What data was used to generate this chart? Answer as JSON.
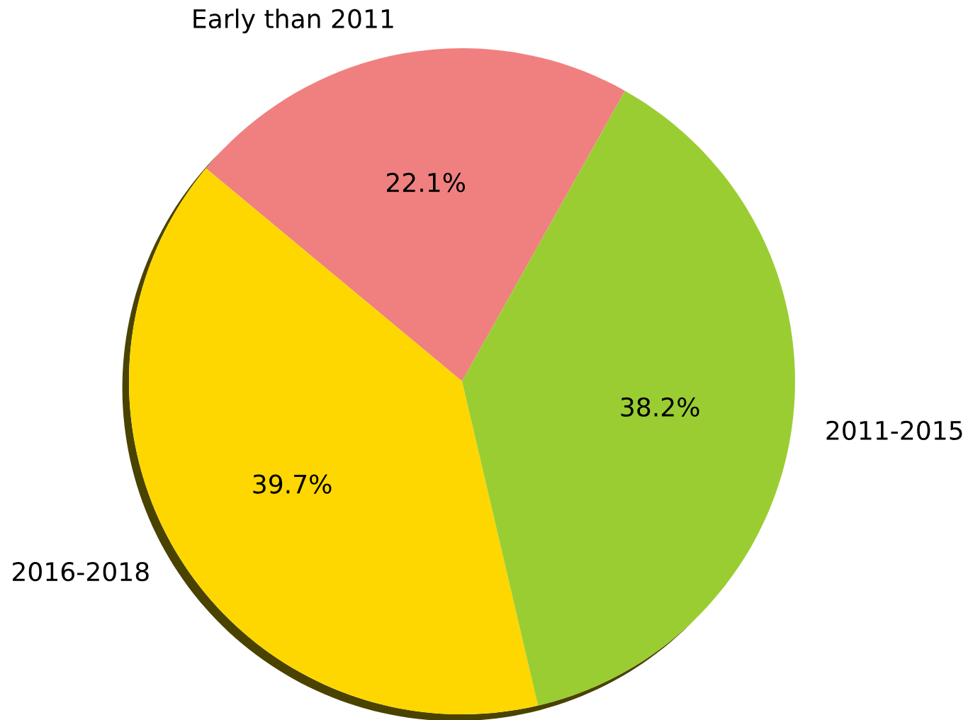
{
  "chart_data": {
    "type": "pie",
    "categories": [
      "Early than 2011",
      "2016-2018",
      "2011-2015"
    ],
    "values": [
      22.1,
      39.7,
      38.2
    ],
    "colors": [
      "#f08080",
      "#ffd700",
      "#9acd32"
    ],
    "value_labels": [
      "22.1%",
      "39.7%",
      "38.2%"
    ]
  }
}
